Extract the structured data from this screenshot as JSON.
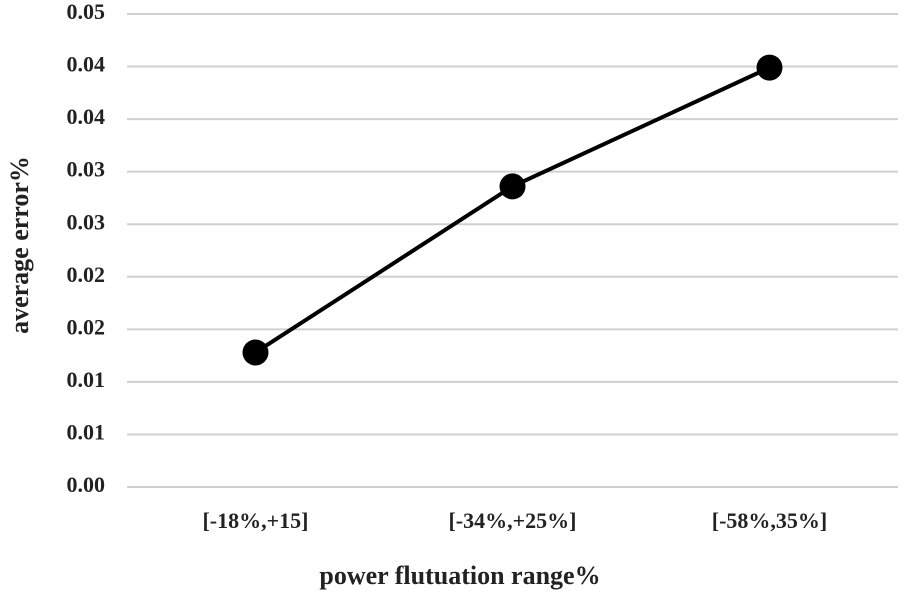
{
  "chart_data": {
    "type": "line",
    "x_label": "power flutuation range%",
    "y_label": "average error%",
    "categories": [
      "[-18%,+15]",
      "[-34%,+25%]",
      "[-58%,35%]"
    ],
    "values": [
      0.0128,
      0.0286,
      0.0399
    ],
    "color": "#000000",
    "ylim": [
      0,
      0.045
    ],
    "yticks": [
      {
        "value": 0,
        "label": "0.00"
      },
      {
        "value": 0.005,
        "label": "0.01"
      },
      0.01,
      {
        "value": 0.015,
        "label": "0.02"
      },
      0.02,
      {
        "value": 0.025,
        "label": "0.03"
      },
      0.03,
      {
        "value": 0.035,
        "label": "0.04"
      },
      0.04,
      {
        "value": 0.045,
        "label": "0.05"
      }
    ],
    "grid": true
  }
}
